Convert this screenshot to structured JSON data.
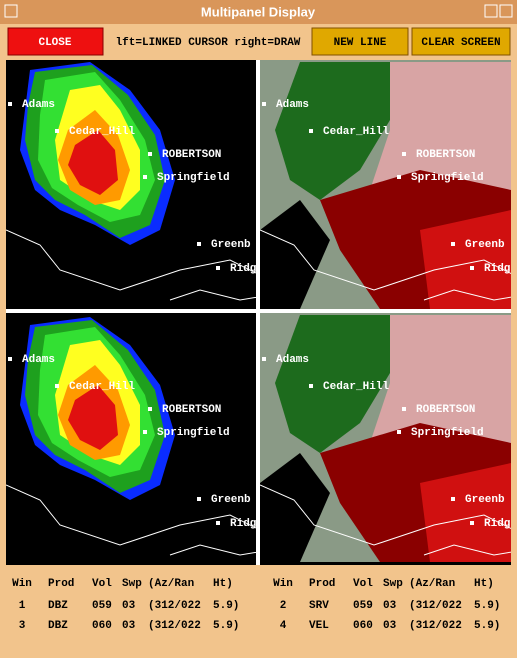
{
  "window": {
    "title": "Multipanel Display"
  },
  "toolbar": {
    "close": "CLOSE",
    "hint": "lft=LINKED CURSOR   right=DRAW",
    "new_line": "NEW LINE",
    "clear_screen": "CLEAR SCREEN"
  },
  "panels": [
    {
      "labels": [
        "Adams",
        "Cedar_Hill",
        "ROBERTSON",
        "Springfield",
        "Greenb",
        "Ridg"
      ]
    },
    {
      "labels": [
        "Adams",
        "Cedar_Hill",
        "ROBERTSON",
        "Springfield",
        "Greenb",
        "Ridg"
      ]
    },
    {
      "labels": [
        "Adams",
        "Cedar_Hill",
        "ROBERTSON",
        "Springfield",
        "Greenb",
        "Ridg"
      ]
    },
    {
      "labels": [
        "Adams",
        "Cedar_Hill",
        "ROBERTSON",
        "Springfield",
        "Greenb",
        "Ridg"
      ]
    }
  ],
  "table": {
    "groups": [
      {
        "headers": [
          "Win",
          "Prod",
          "Vol",
          "Swp",
          "(Az/Ran",
          "Ht)"
        ],
        "rows": [
          [
            "1",
            "DBZ",
            "059",
            "03",
            "(312/022",
            "5.9)"
          ],
          [
            "3",
            "DBZ",
            "060",
            "03",
            "(312/022",
            "5.9)"
          ]
        ]
      },
      {
        "headers": [
          "Win",
          "Prod",
          "Vol",
          "Swp",
          "(Az/Ran",
          "Ht)"
        ],
        "rows": [
          [
            "2",
            "SRV",
            "059",
            "03",
            "(312/022",
            "5.9)"
          ],
          [
            "4",
            "VEL",
            "060",
            "03",
            "(312/022",
            "5.9)"
          ]
        ]
      }
    ]
  }
}
